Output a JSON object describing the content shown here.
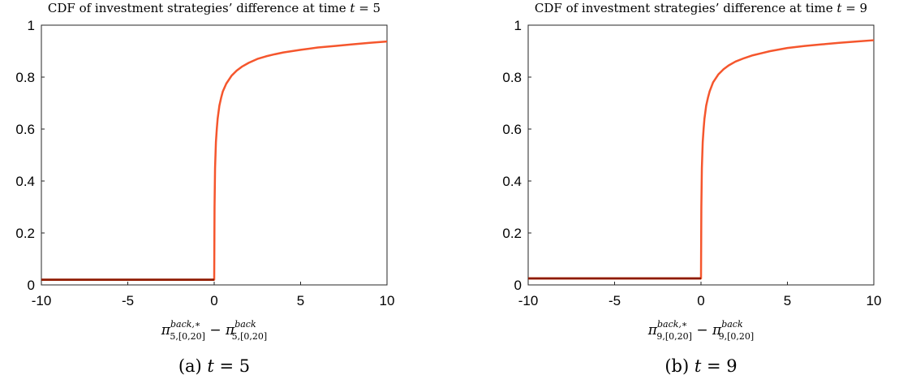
{
  "chart_data": [
    {
      "type": "line",
      "title_prefix": "CDF of investment strategies’ difference at time ",
      "title_var": "t",
      "title_eq": " = 5",
      "xlabel": {
        "left": "π",
        "left_sup": "back,∗",
        "left_sub": "5,[0,20]",
        "minus": " − ",
        "right": "π",
        "right_sup": "back",
        "right_sub": "5,[0,20]"
      },
      "caption": {
        "prefix": "(a) ",
        "var": "t",
        "rest": " = 5"
      },
      "xlim": [
        -10,
        10
      ],
      "ylim": [
        0,
        1
      ],
      "xticks": [
        "-10",
        "-5",
        "0",
        "5",
        "10"
      ],
      "yticks": [
        "0",
        "0.2",
        "0.4",
        "0.6",
        "0.8",
        "1"
      ],
      "grid": false,
      "color": "#f5562d",
      "baseline_color": "#8b1a00",
      "series": [
        {
          "x": [
            -10,
            -0.05,
            0,
            0.02,
            0.05,
            0.1,
            0.15,
            0.2,
            0.3,
            0.4,
            0.5,
            0.7,
            1.0,
            1.3,
            1.6,
            2.0,
            2.5,
            3.0,
            3.5,
            4.0,
            5.0,
            6.0,
            7.0,
            8.0,
            9.0,
            10.0
          ],
          "y": [
            0.02,
            0.02,
            0.02,
            0.3,
            0.45,
            0.55,
            0.6,
            0.64,
            0.69,
            0.72,
            0.745,
            0.775,
            0.805,
            0.825,
            0.84,
            0.855,
            0.87,
            0.88,
            0.888,
            0.895,
            0.905,
            0.914,
            0.92,
            0.926,
            0.932,
            0.937
          ]
        }
      ]
    },
    {
      "type": "line",
      "title_prefix": "CDF of investment strategies’ difference at time ",
      "title_var": "t",
      "title_eq": " = 9",
      "xlabel": {
        "left": "π",
        "left_sup": "back,∗",
        "left_sub": "9,[0,20]",
        "minus": " − ",
        "right": "π",
        "right_sup": "back",
        "right_sub": "9,[0,20]"
      },
      "caption": {
        "prefix": "(b) ",
        "var": "t",
        "rest": " = 9"
      },
      "xlim": [
        -10,
        10
      ],
      "ylim": [
        0,
        1
      ],
      "xticks": [
        "-10",
        "-5",
        "0",
        "5",
        "10"
      ],
      "yticks": [
        "0",
        "0.2",
        "0.4",
        "0.6",
        "0.8",
        "1"
      ],
      "grid": false,
      "color": "#f5562d",
      "baseline_color": "#8b1a00",
      "series": [
        {
          "x": [
            -10,
            -0.05,
            0,
            0.02,
            0.05,
            0.1,
            0.15,
            0.2,
            0.3,
            0.4,
            0.5,
            0.7,
            1.0,
            1.3,
            1.6,
            2.0,
            2.5,
            3.0,
            3.5,
            4.0,
            5.0,
            6.0,
            7.0,
            8.0,
            9.0,
            10.0
          ],
          "y": [
            0.025,
            0.025,
            0.025,
            0.3,
            0.45,
            0.55,
            0.6,
            0.64,
            0.69,
            0.72,
            0.745,
            0.78,
            0.81,
            0.83,
            0.845,
            0.86,
            0.873,
            0.884,
            0.892,
            0.9,
            0.912,
            0.92,
            0.926,
            0.932,
            0.937,
            0.942
          ]
        }
      ]
    }
  ]
}
